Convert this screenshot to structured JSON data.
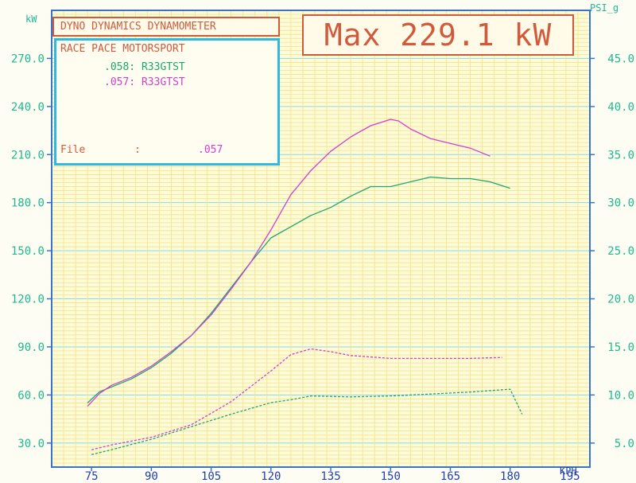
{
  "header": {
    "dyno_title": "DYNO DYNAMICS DYNAMOMETER",
    "max_power": "Max 229.1 kW"
  },
  "info": {
    "company": "RACE PACE MOTORSPORT",
    "runs": [
      {
        "file": ".058:",
        "car": "R33GTST",
        "color": "#1aa870"
      },
      {
        "file": ".057:",
        "car": "R33GTST",
        "color": "#d040d0"
      }
    ],
    "file_label": "File",
    "file_sep": ":",
    "file_value": ".057"
  },
  "chart_data": {
    "type": "line",
    "title": "DYNO DYNAMICS DYNAMOMETER",
    "xlabel": "KPH",
    "ylabel": "kW",
    "ylabel_right": "PSI_g",
    "xlim": [
      65,
      200
    ],
    "ylim": [
      15,
      300
    ],
    "ylim_right": [
      2.5,
      50
    ],
    "grid": true,
    "x_ticks": [
      75,
      90,
      105,
      120,
      135,
      150,
      165,
      180,
      195
    ],
    "y_ticks": [
      "30.0",
      "60.0",
      "90.0",
      "120.0",
      "150.0",
      "180.0",
      "210.0",
      "240.0",
      "270.0"
    ],
    "y_ticks_right": [
      "5.0",
      "10.0",
      "15.0",
      "20.0",
      "25.0",
      "30.0",
      "35.0",
      "40.0",
      "45.0"
    ],
    "series": [
      {
        "name": ".058: R33GTST",
        "measure": "power_kW",
        "axis": "left",
        "color": "#1aa870",
        "style": "solid",
        "x": [
          74,
          77,
          80,
          85,
          90,
          95,
          100,
          105,
          110,
          115,
          120,
          125,
          130,
          135,
          140,
          145,
          150,
          155,
          160,
          165,
          170,
          175,
          180
        ],
        "y": [
          55,
          62,
          65,
          70,
          77,
          86,
          97,
          111,
          127,
          143,
          158,
          165,
          172,
          177,
          184,
          190,
          190,
          193,
          196,
          195,
          195,
          193,
          189
        ]
      },
      {
        "name": ".057: R33GTST",
        "measure": "power_kW",
        "axis": "left",
        "color": "#d040d0",
        "style": "solid",
        "x": [
          74,
          77,
          80,
          85,
          90,
          95,
          100,
          105,
          110,
          115,
          120,
          125,
          130,
          135,
          140,
          145,
          150,
          152,
          155,
          160,
          165,
          170,
          175
        ],
        "y": [
          53,
          61,
          66,
          71,
          78,
          87,
          97,
          110,
          126,
          143,
          163,
          185,
          200,
          212,
          221,
          228,
          232,
          231,
          226,
          220,
          217,
          214,
          209
        ]
      },
      {
        "name": ".058: R33GTST",
        "measure": "boost_PSI",
        "axis": "right",
        "color": "#1aa870",
        "style": "dashed",
        "x": [
          75,
          80,
          90,
          100,
          110,
          120,
          125,
          130,
          140,
          150,
          160,
          170,
          180,
          183
        ],
        "y": [
          3.8,
          4.3,
          5.4,
          6.7,
          8.0,
          9.2,
          9.5,
          9.9,
          9.8,
          9.9,
          10.1,
          10.3,
          10.6,
          8.0
        ]
      },
      {
        "name": ".057: R33GTST",
        "measure": "boost_PSI",
        "axis": "right",
        "color": "#d040d0",
        "style": "dashed",
        "x": [
          75,
          80,
          90,
          100,
          110,
          120,
          125,
          130,
          135,
          140,
          150,
          160,
          170,
          178
        ],
        "y": [
          4.3,
          4.8,
          5.6,
          6.9,
          9.3,
          12.5,
          14.2,
          14.8,
          14.5,
          14.1,
          13.8,
          13.8,
          13.8,
          13.9
        ]
      }
    ]
  }
}
